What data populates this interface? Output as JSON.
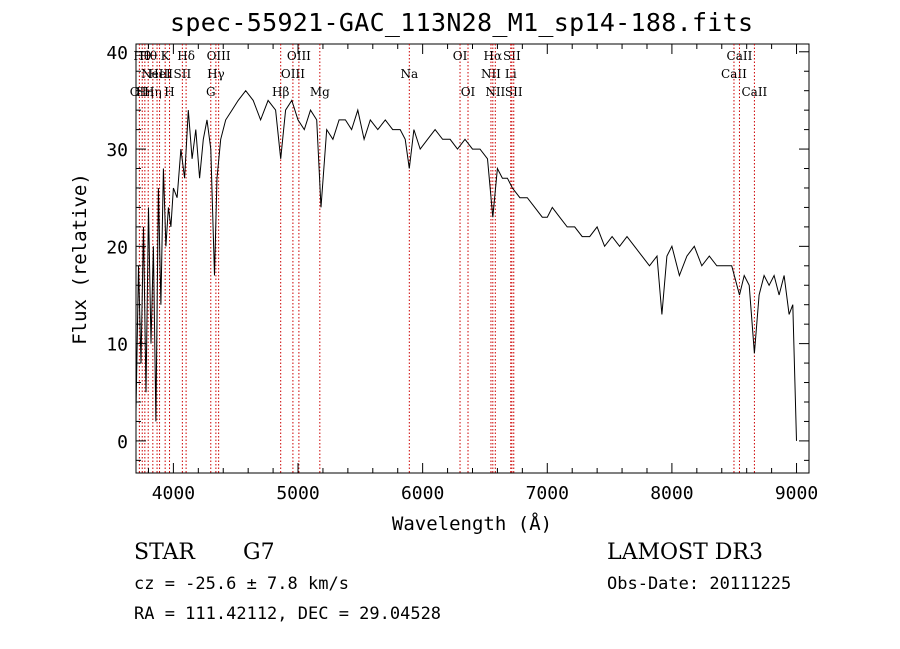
{
  "header": {
    "title": "spec-55921-GAC_113N28_M1_sp14-188.fits"
  },
  "footer": {
    "object_class": "STAR",
    "subclass": "G7",
    "survey": "LAMOST DR3",
    "redshift_line": "cz = -25.6 ± 7.8 km/s",
    "obs_date": "Obs-Date: 20111225",
    "coordinates": "RA = 111.42112, DEC =  29.04528"
  },
  "chart_data": {
    "type": "line",
    "title": "spec-55921-GAC_113N28_M1_sp14-188.fits",
    "xlabel": "Wavelength (Å)",
    "ylabel": "Flux (relative)",
    "xlim": [
      3700,
      9100
    ],
    "ylim": [
      -3.3,
      40.8
    ],
    "xticks": [
      4000,
      5000,
      6000,
      7000,
      8000,
      9000
    ],
    "yticks": [
      0,
      10,
      20,
      30,
      40
    ],
    "grid": false,
    "line_color": "#000000",
    "marker_color": "#cc0000",
    "series": [
      {
        "name": "flux",
        "x": [
          3700,
          3720,
          3740,
          3760,
          3780,
          3800,
          3820,
          3840,
          3860,
          3880,
          3900,
          3920,
          3940,
          3960,
          3980,
          4000,
          4030,
          4060,
          4090,
          4120,
          4150,
          4180,
          4210,
          4240,
          4270,
          4300,
          4330,
          4350,
          4380,
          4420,
          4470,
          4520,
          4580,
          4640,
          4700,
          4760,
          4820,
          4861,
          4900,
          4950,
          5000,
          5050,
          5100,
          5150,
          5184,
          5230,
          5280,
          5330,
          5380,
          5430,
          5480,
          5530,
          5580,
          5640,
          5700,
          5760,
          5820,
          5860,
          5893,
          5930,
          5980,
          6040,
          6100,
          6160,
          6220,
          6280,
          6340,
          6400,
          6460,
          6520,
          6563,
          6600,
          6640,
          6680,
          6720,
          6780,
          6840,
          6900,
          6960,
          7000,
          7040,
          7100,
          7160,
          7220,
          7280,
          7340,
          7400,
          7460,
          7520,
          7580,
          7640,
          7700,
          7760,
          7820,
          7880,
          7920,
          7960,
          8000,
          8060,
          8120,
          8180,
          8240,
          8300,
          8360,
          8420,
          8480,
          8542,
          8580,
          8620,
          8662,
          8700,
          8740,
          8780,
          8820,
          8860,
          8900,
          8940,
          8970,
          9000
        ],
        "values": [
          3,
          18,
          8,
          22,
          5,
          24,
          10,
          20,
          2,
          26,
          14,
          28,
          20,
          24,
          22,
          26,
          25,
          30,
          27,
          34,
          29,
          32,
          27,
          31,
          33,
          30,
          17,
          27,
          31,
          33,
          34,
          35,
          36,
          35,
          33,
          35,
          34,
          29,
          34,
          35,
          33,
          32,
          34,
          33,
          24,
          32,
          31,
          33,
          33,
          32,
          34,
          31,
          33,
          32,
          33,
          32,
          32,
          31,
          28,
          32,
          30,
          31,
          32,
          31,
          31,
          30,
          31,
          30,
          30,
          29,
          23,
          28,
          27,
          27,
          26,
          25,
          25,
          24,
          23,
          23,
          24,
          23,
          22,
          22,
          21,
          21,
          22,
          20,
          21,
          20,
          21,
          20,
          19,
          18,
          19,
          13,
          19,
          20,
          17,
          19,
          20,
          18,
          19,
          18,
          18,
          18,
          15,
          17,
          16,
          9,
          15,
          17,
          16,
          17,
          15,
          17,
          13,
          14,
          0
        ]
      }
    ],
    "line_markers": [
      {
        "wl": 3727,
        "label": "OII",
        "row": 3
      },
      {
        "wl": 3750,
        "label": "Hθ",
        "row": 1
      },
      {
        "wl": 3771,
        "label": "Hη",
        "row": 3
      },
      {
        "wl": 3798,
        "label": "Hθ",
        "row": 1
      },
      {
        "wl": 3835,
        "label": "Hη",
        "row": 3
      },
      {
        "wl": 3869,
        "label": "NeIII",
        "row": 2
      },
      {
        "wl": 3889,
        "label": "HeI",
        "row": 2
      },
      {
        "wl": 3934,
        "label": "K",
        "row": 1
      },
      {
        "wl": 3969,
        "label": "H",
        "row": 3
      },
      {
        "wl": 4072,
        "label": "SII",
        "row": 2
      },
      {
        "wl": 4102,
        "label": "Hδ",
        "row": 1
      },
      {
        "wl": 4300,
        "label": "G",
        "row": 3
      },
      {
        "wl": 4341,
        "label": "Hγ",
        "row": 2
      },
      {
        "wl": 4363,
        "label": "OIII",
        "row": 1
      },
      {
        "wl": 4861,
        "label": "Hβ",
        "row": 3
      },
      {
        "wl": 4959,
        "label": "OIII",
        "row": 2
      },
      {
        "wl": 5007,
        "label": "OIII",
        "row": 1
      },
      {
        "wl": 5175,
        "label": "Mg",
        "row": 3
      },
      {
        "wl": 5893,
        "label": "Na",
        "row": 2
      },
      {
        "wl": 6300,
        "label": "OI",
        "row": 1
      },
      {
        "wl": 6364,
        "label": "OI",
        "row": 3
      },
      {
        "wl": 6548,
        "label": "NII",
        "row": 2
      },
      {
        "wl": 6563,
        "label": "Hα",
        "row": 1
      },
      {
        "wl": 6583,
        "label": "NII",
        "row": 3
      },
      {
        "wl": 6707,
        "label": "Li",
        "row": 2
      },
      {
        "wl": 6716,
        "label": "SII",
        "row": 1
      },
      {
        "wl": 6731,
        "label": "SII",
        "row": 3
      },
      {
        "wl": 8498,
        "label": "CaII",
        "row": 2
      },
      {
        "wl": 8542,
        "label": "CaII",
        "row": 1
      },
      {
        "wl": 8662,
        "label": "CaII",
        "row": 3
      }
    ]
  }
}
